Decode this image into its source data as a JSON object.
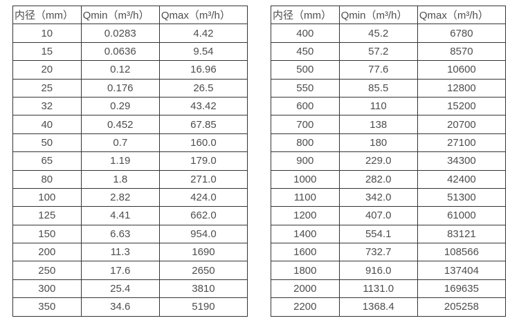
{
  "colors": {
    "border": "#333333",
    "text": "#4d4d4d",
    "background": "#ffffff"
  },
  "tables": [
    {
      "name": "flow-table-small-diameters",
      "headers": [
        "内径（mm）",
        "Qmin（m³/h）",
        "Qmax（m³/h）"
      ],
      "rows": [
        [
          "10",
          "0.0283",
          "4.42"
        ],
        [
          "15",
          "0.0636",
          "9.54"
        ],
        [
          "20",
          "0.12",
          "16.96"
        ],
        [
          "25",
          "0.176",
          "26.5"
        ],
        [
          "32",
          "0.29",
          "43.42"
        ],
        [
          "40",
          "0.452",
          "67.85"
        ],
        [
          "50",
          "0.7",
          "160.0"
        ],
        [
          "65",
          "1.19",
          "179.0"
        ],
        [
          "80",
          "1.8",
          "271.0"
        ],
        [
          "100",
          "2.82",
          "424.0"
        ],
        [
          "125",
          "4.41",
          "662.0"
        ],
        [
          "150",
          "6.63",
          "954.0"
        ],
        [
          "200",
          "11.3",
          "1690"
        ],
        [
          "250",
          "17.6",
          "2650"
        ],
        [
          "300",
          "25.4",
          "3810"
        ],
        [
          "350",
          "34.6",
          "5190"
        ]
      ]
    },
    {
      "name": "flow-table-large-diameters",
      "headers": [
        "内径（mm）",
        "Qmin（m³/h）",
        "Qmax（m³/h）"
      ],
      "rows": [
        [
          "400",
          "45.2",
          "6780"
        ],
        [
          "450",
          "57.2",
          "8570"
        ],
        [
          "500",
          "77.6",
          "10600"
        ],
        [
          "550",
          "85.5",
          "12800"
        ],
        [
          "600",
          "110",
          "15200"
        ],
        [
          "700",
          "138",
          "20700"
        ],
        [
          "800",
          "180",
          "27100"
        ],
        [
          "900",
          "229.0",
          "34300"
        ],
        [
          "1000",
          "282.0",
          "42400"
        ],
        [
          "1100",
          "342.0",
          "51300"
        ],
        [
          "1200",
          "407.0",
          "61000"
        ],
        [
          "1400",
          "554.1",
          "83121"
        ],
        [
          "1600",
          "732.7",
          "108566"
        ],
        [
          "1800",
          "916.0",
          "137404"
        ],
        [
          "2000",
          "1131.0",
          "169635"
        ],
        [
          "2200",
          "1368.4",
          "205258"
        ]
      ]
    }
  ]
}
